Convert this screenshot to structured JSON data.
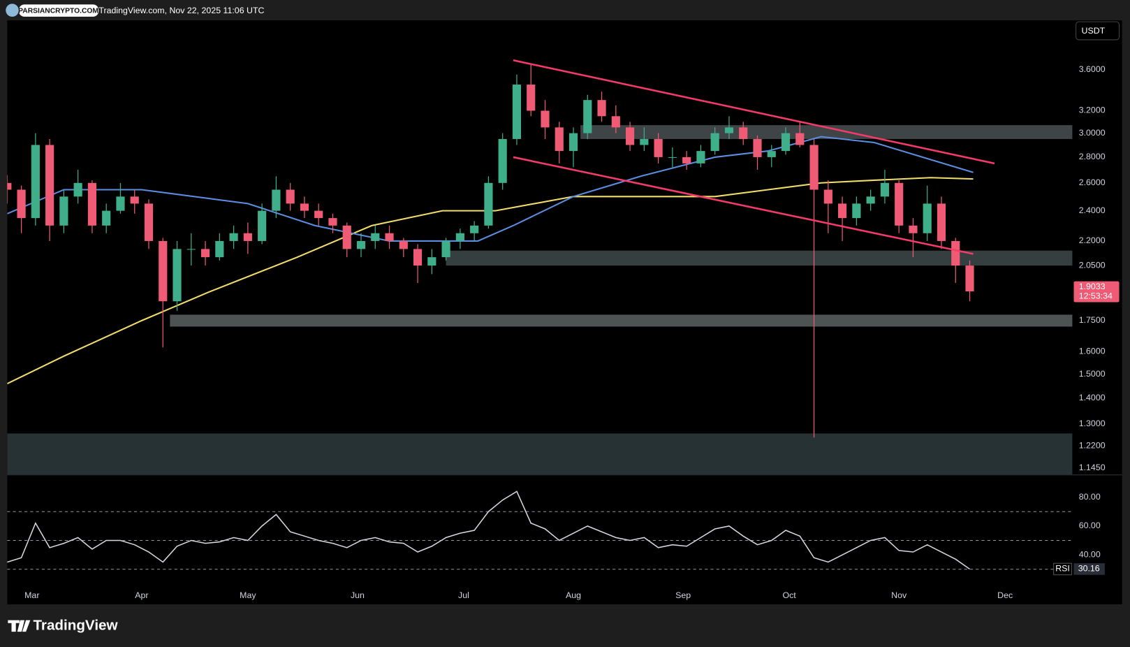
{
  "header": {
    "brand": "PARSIANCRYPTO.COM",
    "source": "TradingView.com, Nov 22, 2025 11:06 UTC"
  },
  "footer": {
    "logo": "TradingView"
  },
  "chart_data": [
    {
      "type": "candlestick",
      "currency": "USDT",
      "log_scale": true,
      "grid": false,
      "up_color": "#3fae8a",
      "down_color": "#ef5a75",
      "x": [
        "2025-02-22",
        "2025-02-26",
        "2025-03-02",
        "2025-03-06",
        "2025-03-10",
        "2025-03-14",
        "2025-03-18",
        "2025-03-22",
        "2025-03-26",
        "2025-03-30",
        "2025-04-03",
        "2025-04-07",
        "2025-04-11",
        "2025-04-15",
        "2025-04-19",
        "2025-04-23",
        "2025-04-27",
        "2025-05-01",
        "2025-05-05",
        "2025-05-09",
        "2025-05-13",
        "2025-05-17",
        "2025-05-21",
        "2025-05-25",
        "2025-05-29",
        "2025-06-02",
        "2025-06-06",
        "2025-06-10",
        "2025-06-14",
        "2025-06-18",
        "2025-06-22",
        "2025-06-26",
        "2025-06-30",
        "2025-07-04",
        "2025-07-08",
        "2025-07-12",
        "2025-07-16",
        "2025-07-20",
        "2025-07-24",
        "2025-07-28",
        "2025-08-01",
        "2025-08-05",
        "2025-08-09",
        "2025-08-13",
        "2025-08-17",
        "2025-08-21",
        "2025-08-25",
        "2025-08-29",
        "2025-09-02",
        "2025-09-06",
        "2025-09-10",
        "2025-09-14",
        "2025-09-18",
        "2025-09-22",
        "2025-09-26",
        "2025-09-30",
        "2025-10-04",
        "2025-10-08",
        "2025-10-12",
        "2025-10-16",
        "2025-10-20",
        "2025-10-24",
        "2025-10-28",
        "2025-11-01",
        "2025-11-05",
        "2025-11-09",
        "2025-11-13",
        "2025-11-17",
        "2025-11-21"
      ],
      "open": [
        2.6,
        2.55,
        2.35,
        2.9,
        2.3,
        2.5,
        2.6,
        2.3,
        2.4,
        2.5,
        2.45,
        2.2,
        1.85,
        2.15,
        2.15,
        2.1,
        2.2,
        2.25,
        2.2,
        2.4,
        2.55,
        2.45,
        2.4,
        2.35,
        2.3,
        2.15,
        2.2,
        2.25,
        2.2,
        2.15,
        2.05,
        2.1,
        2.2,
        2.25,
        2.3,
        2.6,
        2.95,
        3.45,
        3.2,
        3.05,
        2.85,
        3.0,
        3.3,
        3.15,
        3.05,
        2.9,
        2.95,
        2.8,
        2.8,
        2.75,
        2.85,
        3.0,
        3.05,
        2.95,
        2.8,
        2.85,
        3.0,
        2.9,
        2.55,
        2.45,
        2.35,
        2.45,
        2.5,
        2.6,
        2.3,
        2.25,
        2.45,
        2.2,
        2.05
      ],
      "high": [
        2.66,
        2.58,
        3.0,
        2.95,
        2.55,
        2.7,
        2.62,
        2.45,
        2.6,
        2.55,
        2.48,
        2.22,
        2.2,
        2.25,
        2.2,
        2.25,
        2.3,
        2.32,
        2.45,
        2.65,
        2.6,
        2.5,
        2.45,
        2.38,
        2.32,
        2.25,
        2.3,
        2.3,
        2.22,
        2.18,
        2.15,
        2.22,
        2.28,
        2.33,
        2.65,
        3.0,
        3.55,
        3.65,
        3.3,
        3.1,
        3.05,
        3.35,
        3.38,
        3.25,
        3.1,
        3.05,
        3.0,
        2.88,
        2.85,
        2.9,
        3.05,
        3.15,
        3.1,
        2.98,
        2.9,
        3.05,
        3.1,
        2.95,
        2.62,
        2.5,
        2.5,
        2.55,
        2.7,
        2.62,
        2.35,
        2.58,
        2.5,
        2.22,
        2.08
      ],
      "low": [
        2.45,
        2.25,
        2.3,
        2.2,
        2.25,
        2.45,
        2.25,
        2.25,
        2.38,
        2.38,
        2.15,
        1.62,
        1.8,
        2.05,
        2.05,
        2.08,
        2.15,
        2.12,
        2.18,
        2.35,
        2.4,
        2.35,
        2.3,
        2.25,
        2.1,
        2.1,
        2.15,
        2.15,
        2.1,
        1.95,
        2.0,
        2.08,
        2.15,
        2.2,
        2.28,
        2.55,
        2.9,
        3.15,
        2.95,
        2.75,
        2.72,
        2.95,
        3.1,
        3.0,
        2.85,
        2.85,
        2.75,
        2.72,
        2.7,
        2.72,
        2.82,
        2.95,
        2.9,
        2.7,
        2.72,
        2.82,
        2.88,
        1.25,
        2.25,
        2.2,
        2.3,
        2.4,
        2.45,
        2.25,
        2.1,
        2.2,
        2.15,
        1.95,
        1.85
      ],
      "close": [
        2.55,
        2.35,
        2.9,
        2.3,
        2.5,
        2.6,
        2.3,
        2.4,
        2.5,
        2.45,
        2.2,
        1.85,
        2.15,
        2.15,
        2.1,
        2.2,
        2.25,
        2.2,
        2.4,
        2.55,
        2.45,
        2.4,
        2.35,
        2.3,
        2.15,
        2.2,
        2.25,
        2.2,
        2.15,
        2.05,
        2.1,
        2.2,
        2.25,
        2.3,
        2.6,
        2.95,
        3.45,
        3.2,
        3.05,
        2.85,
        3.0,
        3.3,
        3.15,
        3.05,
        2.9,
        2.95,
        2.8,
        2.8,
        2.75,
        2.85,
        3.0,
        3.05,
        2.95,
        2.8,
        2.85,
        3.0,
        2.9,
        2.55,
        2.45,
        2.35,
        2.45,
        2.5,
        2.6,
        2.3,
        2.25,
        2.45,
        2.2,
        2.05,
        1.9033
      ],
      "countdown": "12:53:34",
      "xlim": [
        "2025-02-22",
        "2025-12-20"
      ],
      "xticks": [
        {
          "value": "2025-03-01",
          "label": "Mar"
        },
        {
          "value": "2025-04-01",
          "label": "Apr"
        },
        {
          "value": "2025-05-01",
          "label": "May"
        },
        {
          "value": "2025-06-01",
          "label": "Jun"
        },
        {
          "value": "2025-07-01",
          "label": "Jul"
        },
        {
          "value": "2025-08-01",
          "label": "Aug"
        },
        {
          "value": "2025-09-01",
          "label": "Sep"
        },
        {
          "value": "2025-10-01",
          "label": "Oct"
        },
        {
          "value": "2025-11-01",
          "label": "Nov"
        },
        {
          "value": "2025-12-01",
          "label": "Dec"
        }
      ],
      "ylim": [
        1.124,
        4.15
      ],
      "yticks": [
        {
          "value": 3.6,
          "label": "3.6000"
        },
        {
          "value": 3.2,
          "label": "3.2000"
        },
        {
          "value": 3.0,
          "label": "3.0000"
        },
        {
          "value": 2.8,
          "label": "2.8000"
        },
        {
          "value": 2.6,
          "label": "2.6000"
        },
        {
          "value": 2.4,
          "label": "2.4000"
        },
        {
          "value": 2.2,
          "label": "2.2000"
        },
        {
          "value": 2.05,
          "label": "2.0500"
        },
        {
          "value": 1.75,
          "label": "1.7500"
        },
        {
          "value": 1.6,
          "label": "1.6000"
        },
        {
          "value": 1.5,
          "label": "1.5000"
        },
        {
          "value": 1.4,
          "label": "1.4000"
        },
        {
          "value": 1.3,
          "label": "1.3000"
        },
        {
          "value": 1.22,
          "label": "1.2200"
        },
        {
          "value": 1.145,
          "label": "1.1450"
        }
      ],
      "lines": [
        {
          "color": "#f3dc6b",
          "x": [
            "2025-02-22",
            "2025-03-10",
            "2025-04-01",
            "2025-04-20",
            "2025-05-15",
            "2025-06-05",
            "2025-06-25",
            "2025-07-10",
            "2025-08-01",
            "2025-08-20",
            "2025-09-10",
            "2025-09-25",
            "2025-10-10",
            "2025-10-25",
            "2025-11-10",
            "2025-11-22"
          ],
          "values": [
            1.46,
            1.58,
            1.75,
            1.9,
            2.1,
            2.3,
            2.4,
            2.4,
            2.5,
            2.5,
            2.5,
            2.55,
            2.6,
            2.62,
            2.64,
            2.63
          ]
        },
        {
          "color": "#5b8de0",
          "x": [
            "2025-02-22",
            "2025-03-10",
            "2025-04-01",
            "2025-05-01",
            "2025-05-20",
            "2025-06-10",
            "2025-07-05",
            "2025-07-15",
            "2025-08-01",
            "2025-08-20",
            "2025-09-10",
            "2025-09-25",
            "2025-10-10",
            "2025-10-25",
            "2025-11-10",
            "2025-11-22"
          ],
          "values": [
            2.38,
            2.55,
            2.55,
            2.45,
            2.3,
            2.2,
            2.2,
            2.3,
            2.5,
            2.65,
            2.8,
            2.85,
            2.97,
            2.92,
            2.78,
            2.68
          ]
        }
      ],
      "trendlines": [
        {
          "color": "#f23b6b",
          "x": [
            "2025-07-15",
            "2025-11-28"
          ],
          "values": [
            3.7,
            2.75
          ]
        },
        {
          "color": "#f23b6b",
          "x": [
            "2025-07-15",
            "2025-11-22"
          ],
          "values": [
            2.8,
            2.12
          ]
        }
      ],
      "zones": [
        {
          "color": "#4a5052",
          "x0": "2025-08-03",
          "low": 2.95,
          "high": 3.07
        },
        {
          "color": "#3f4a4b",
          "x0": "2025-06-26",
          "low": 2.05,
          "high": 2.14
        },
        {
          "color": "#5b6062",
          "x0": "2025-04-09",
          "low": 1.72,
          "high": 1.78
        },
        {
          "color": "#2e3b3d",
          "x0": "2025-02-22",
          "low": 1.124,
          "high": 1.265
        }
      ]
    },
    {
      "type": "line",
      "name": "RSI",
      "color": "#d6d8de",
      "x": [
        "2025-02-22",
        "2025-02-26",
        "2025-03-02",
        "2025-03-06",
        "2025-03-10",
        "2025-03-14",
        "2025-03-18",
        "2025-03-22",
        "2025-03-26",
        "2025-03-30",
        "2025-04-03",
        "2025-04-07",
        "2025-04-11",
        "2025-04-15",
        "2025-04-19",
        "2025-04-23",
        "2025-04-27",
        "2025-05-01",
        "2025-05-05",
        "2025-05-09",
        "2025-05-13",
        "2025-05-17",
        "2025-05-21",
        "2025-05-25",
        "2025-05-29",
        "2025-06-02",
        "2025-06-06",
        "2025-06-10",
        "2025-06-14",
        "2025-06-18",
        "2025-06-22",
        "2025-06-26",
        "2025-06-30",
        "2025-07-04",
        "2025-07-08",
        "2025-07-12",
        "2025-07-16",
        "2025-07-20",
        "2025-07-24",
        "2025-07-28",
        "2025-08-01",
        "2025-08-05",
        "2025-08-09",
        "2025-08-13",
        "2025-08-17",
        "2025-08-21",
        "2025-08-25",
        "2025-08-29",
        "2025-09-02",
        "2025-09-06",
        "2025-09-10",
        "2025-09-14",
        "2025-09-18",
        "2025-09-22",
        "2025-09-26",
        "2025-09-30",
        "2025-10-04",
        "2025-10-08",
        "2025-10-12",
        "2025-10-16",
        "2025-10-20",
        "2025-10-24",
        "2025-10-28",
        "2025-11-01",
        "2025-11-05",
        "2025-11-09",
        "2025-11-13",
        "2025-11-17",
        "2025-11-21"
      ],
      "values": [
        35,
        38,
        62,
        45,
        48,
        52,
        44,
        50,
        50,
        47,
        42,
        35,
        46,
        50,
        48,
        49,
        52,
        50,
        60,
        68,
        56,
        53,
        50,
        48,
        45,
        50,
        52,
        49,
        48,
        42,
        46,
        52,
        55,
        57,
        70,
        78,
        84,
        62,
        58,
        50,
        55,
        60,
        56,
        52,
        50,
        52,
        45,
        47,
        46,
        52,
        58,
        60,
        53,
        47,
        50,
        57,
        53,
        38,
        35,
        40,
        45,
        50,
        52,
        43,
        42,
        47,
        42,
        37,
        30.16
      ],
      "xlim": [
        "2025-02-22",
        "2025-12-20"
      ],
      "ylim": [
        18.7,
        95.7
      ],
      "yticks": [
        {
          "value": 80,
          "label": "80.00"
        },
        {
          "value": 60,
          "label": "60.00"
        },
        {
          "value": 40,
          "label": "40.00"
        }
      ],
      "levels": [
        70,
        50,
        30
      ]
    }
  ]
}
